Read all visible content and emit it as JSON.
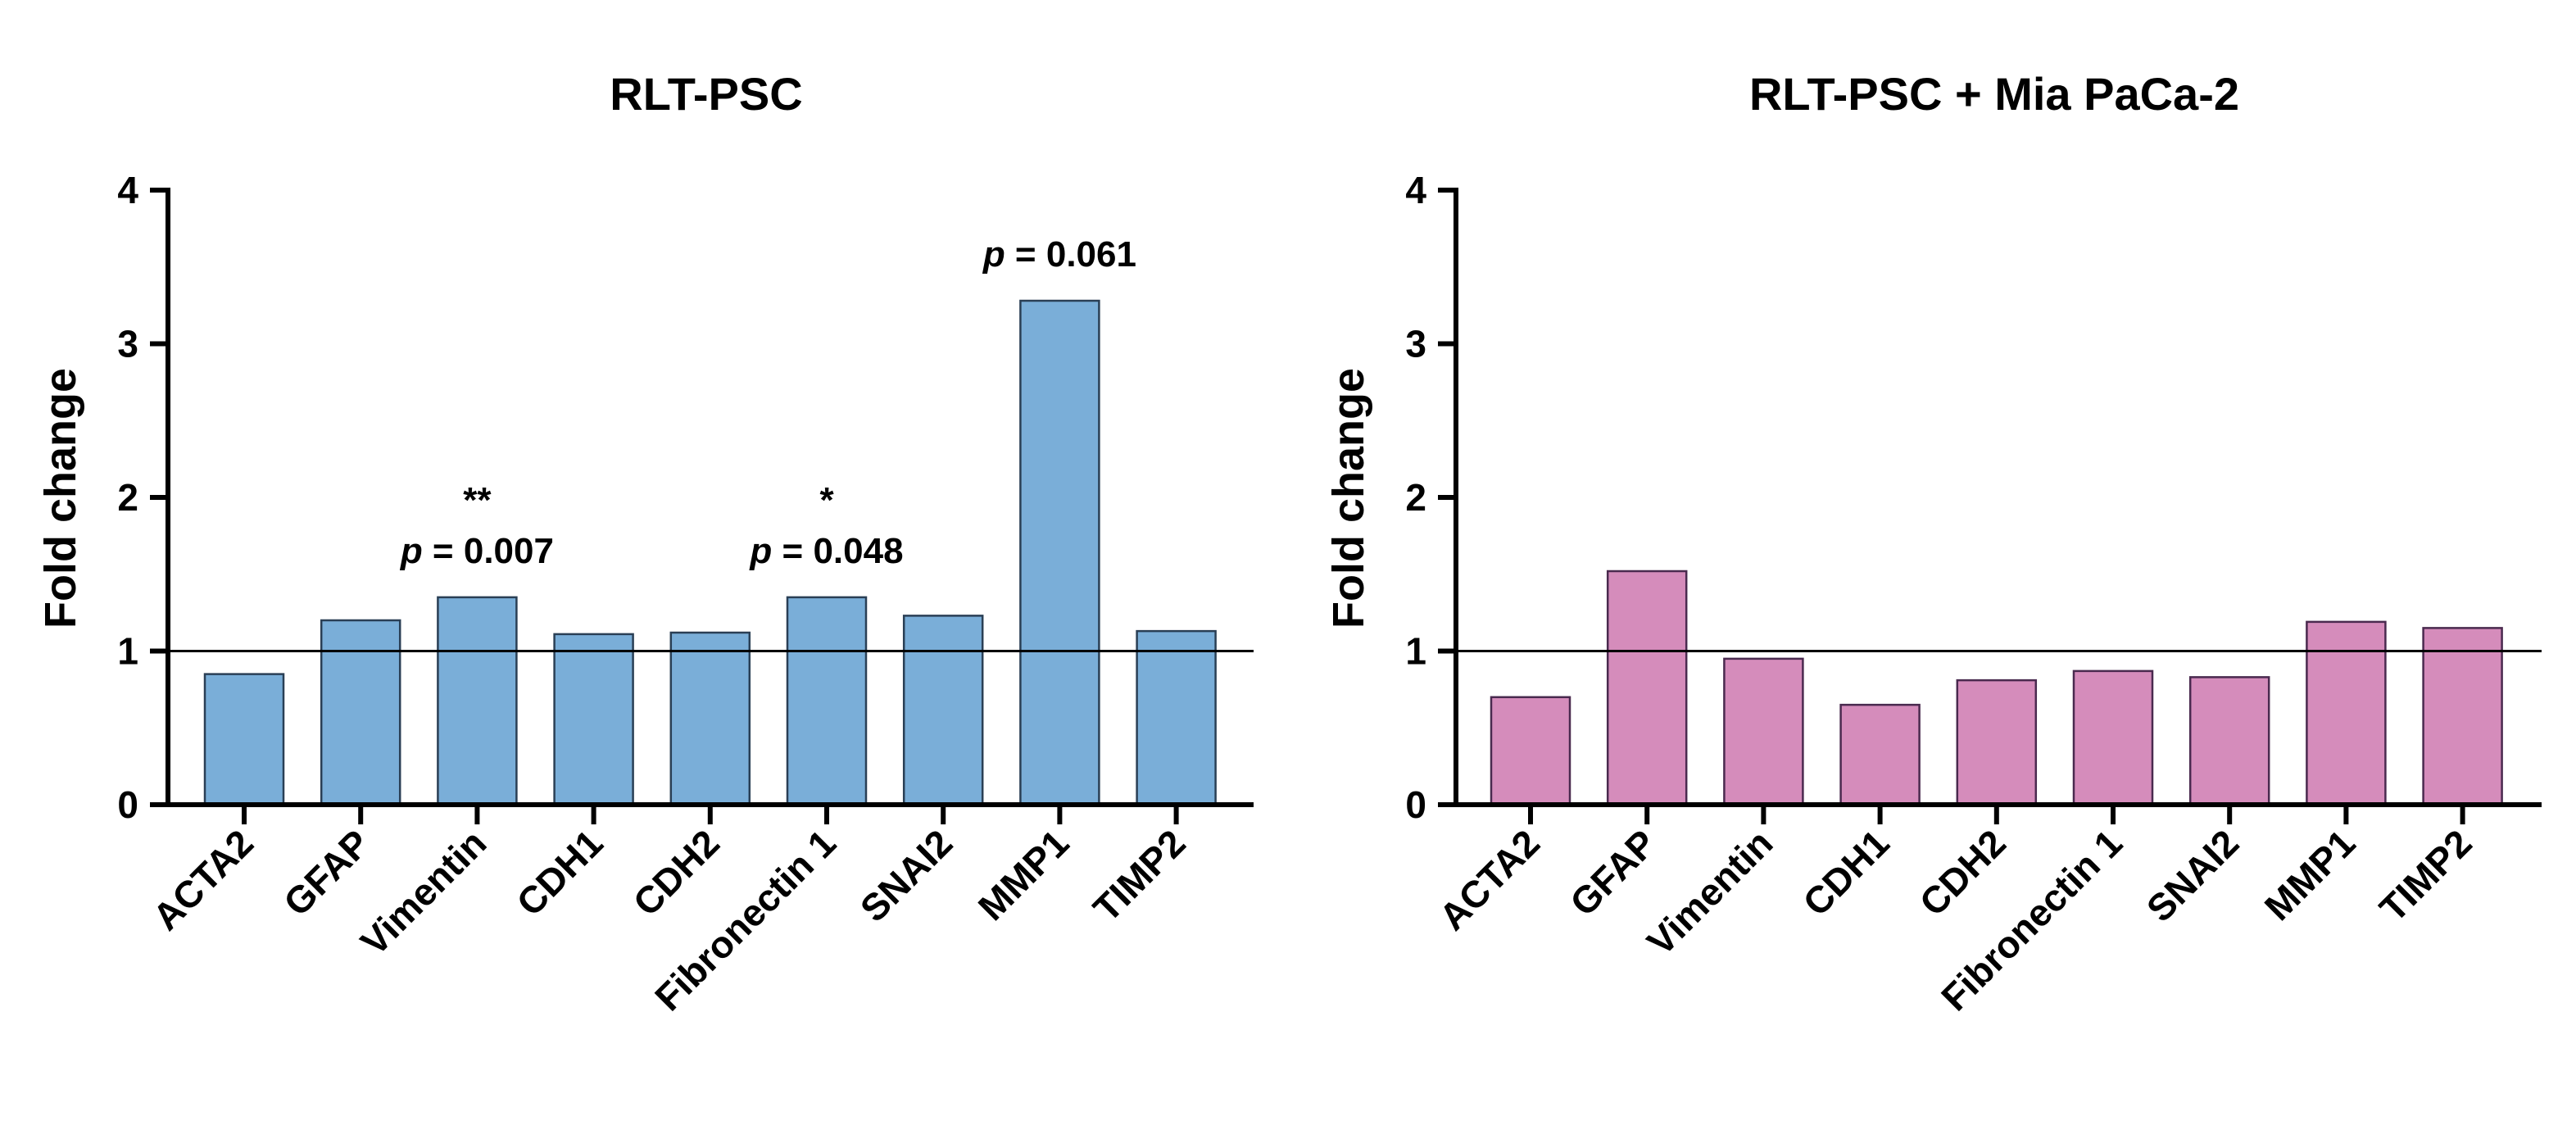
{
  "chart_data": [
    {
      "type": "bar",
      "title": "RLT-PSC",
      "xlabel": "",
      "ylabel": "Fold change",
      "ylim": [
        0,
        4
      ],
      "yticks": [
        "0",
        "1",
        "2",
        "3",
        "4"
      ],
      "reference_line": 1,
      "bar_color": "#7aaed8",
      "edge_color": "#2a3f55",
      "categories": [
        "ACTA2",
        "GFAP",
        "Vimentin",
        "CDH1",
        "CDH2",
        "Fibronectin 1",
        "SNAI2",
        "MMP1",
        "TIMP2"
      ],
      "values": [
        0.85,
        1.2,
        1.35,
        1.11,
        1.12,
        1.35,
        1.23,
        3.28,
        1.13
      ],
      "annotations": [
        {
          "category": "Vimentin",
          "stars": "**",
          "p_label": "p",
          "p_text": " =  0.007"
        },
        {
          "category": "Fibronectin 1",
          "stars": "*",
          "p_label": "p",
          "p_text": " =  0.048"
        },
        {
          "category": "MMP1",
          "stars": "",
          "p_label": "p",
          "p_text": " =  0.061"
        }
      ]
    },
    {
      "type": "bar",
      "title": "RLT-PSC  + Mia  PaCa-2",
      "xlabel": "",
      "ylabel": "Fold change",
      "ylim": [
        0,
        4
      ],
      "yticks": [
        "0",
        "1",
        "2",
        "3",
        "4"
      ],
      "reference_line": 1,
      "bar_color": "#d58cbb",
      "edge_color": "#4a2a4f",
      "categories": [
        "ACTA2",
        "GFAP",
        "Vimentin",
        "CDH1",
        "CDH2",
        "Fibronectin 1",
        "SNAI2",
        "MMP1",
        "TIMP2"
      ],
      "values": [
        0.7,
        1.52,
        0.95,
        0.65,
        0.81,
        0.87,
        0.83,
        1.19,
        1.15
      ],
      "annotations": []
    }
  ]
}
